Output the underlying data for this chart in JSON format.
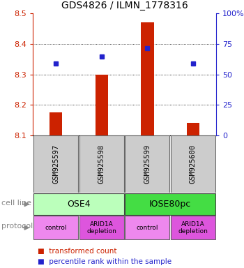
{
  "title": "GDS4826 / ILMN_1778316",
  "samples": [
    "GSM925597",
    "GSM925598",
    "GSM925599",
    "GSM925600"
  ],
  "bar_values": [
    8.175,
    8.3,
    8.47,
    8.14
  ],
  "bar_base": 8.1,
  "dot_values": [
    8.335,
    8.358,
    8.385,
    8.335
  ],
  "ylim": [
    8.1,
    8.5
  ],
  "y_ticks": [
    8.1,
    8.2,
    8.3,
    8.4,
    8.5
  ],
  "right_ticks": [
    0,
    25,
    50,
    75,
    100
  ],
  "right_tick_labels": [
    "0",
    "25",
    "50",
    "75",
    "100%"
  ],
  "grid_lines": [
    8.2,
    8.3,
    8.4
  ],
  "protocols": [
    "control",
    "ARID1A\ndepletion",
    "control",
    "ARID1A\ndepletion"
  ],
  "cell_line_ose4_color": "#bbffbb",
  "cell_line_iose_color": "#44dd44",
  "protocol_control_color": "#ee88ee",
  "protocol_arid_color": "#dd55dd",
  "bar_color": "#cc2200",
  "dot_color": "#2222cc",
  "sample_box_color": "#cccccc",
  "left_label_color": "#cc2200",
  "right_label_color": "#2222cc",
  "label_text_color": "#888888",
  "arrow_color": "#888888"
}
